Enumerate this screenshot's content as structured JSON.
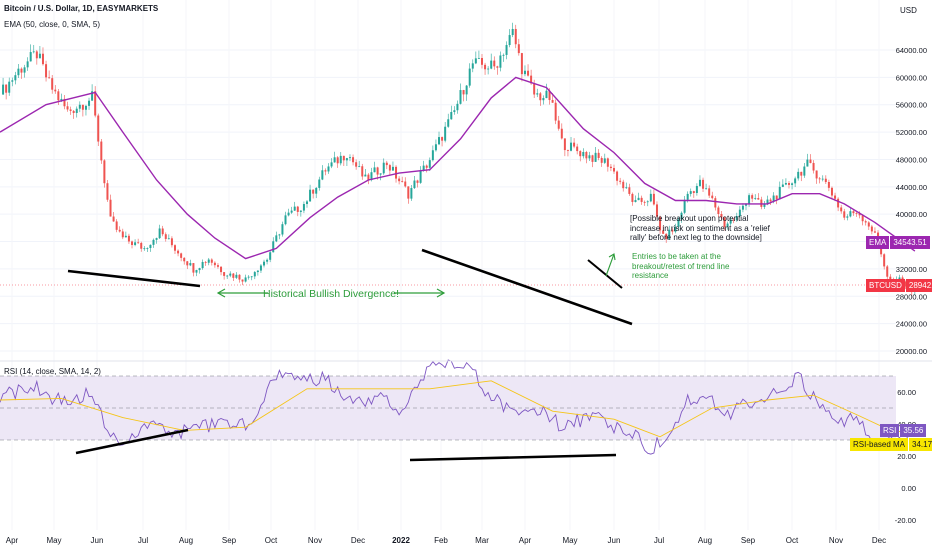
{
  "header": {
    "symbol_title": "Bitcoin / U.S. Dollar, 1D, EASYMARKETS",
    "ema_indicator": "EMA (50, close, 0, SMA, 5)",
    "rsi_indicator": "RSI (14, close, SMA, 14, 2)",
    "currency": "USD"
  },
  "annotations": {
    "divergence_label": "Historical Bullish Divergence!",
    "breakout_note": [
      "[Possible breakout upon potential",
      "increase in risk on sentiment as a 'relief",
      "rally' before next leg to the downside]"
    ],
    "entries_note": [
      "Entries to be taken at the",
      "breakout/retest of trend line",
      "resistance"
    ]
  },
  "price_tags": {
    "ema": {
      "label": "EMA",
      "value": "34543.51",
      "color": "#9c27b0"
    },
    "btc": {
      "label": "BTCUSD",
      "value": "28942.52",
      "color": "#f23645"
    },
    "rsi": {
      "label": "RSI",
      "value": "35.56",
      "color": "#7e57c2"
    },
    "rsi_ma": {
      "label": "RSI-based MA",
      "value": "34.17",
      "color": "#f7e600"
    }
  },
  "colors": {
    "up_candle": "#26a69a",
    "down_candle": "#ef5350",
    "ema_line": "#9c27b0",
    "rsi_line": "#7e57c2",
    "rsi_ma_line": "#f5c518",
    "rsi_band": "#ede7f6",
    "annotation_green": "#2e9d3b",
    "trendline": "#000000"
  },
  "chart_data": [
    {
      "type": "candlestick",
      "title": "Bitcoin / U.S. Dollar, 1D, EASYMARKETS",
      "y_axis_ticks": [
        20000,
        24000,
        28000,
        32000,
        36000,
        40000,
        44000,
        48000,
        52000,
        56000,
        60000,
        64000
      ],
      "y_axis_tick_labels": [
        "20000.00",
        "24000.00",
        "28000.00",
        "32000.00",
        "36000.00",
        "40000.00",
        "44000.00",
        "48000.00",
        "52000.00",
        "56000.00",
        "60000.00",
        "64000.00"
      ],
      "x_axis_labels": [
        "Apr",
        "May",
        "Jun",
        "Jul",
        "Aug",
        "Sep",
        "Oct",
        "Nov",
        "Dec",
        "2022",
        "Feb",
        "Mar",
        "Apr",
        "May",
        "Jun",
        "Jul",
        "Aug",
        "Sep",
        "Oct",
        "Nov",
        "Dec"
      ],
      "ylim": [
        18500,
        66500
      ],
      "price_path": [
        [
          0,
          57500
        ],
        [
          6,
          61000
        ],
        [
          12,
          63500
        ],
        [
          16,
          59000
        ],
        [
          22,
          55000
        ],
        [
          30,
          57000
        ],
        [
          36,
          39000
        ],
        [
          40,
          36500
        ],
        [
          47,
          35000
        ],
        [
          52,
          37500
        ],
        [
          58,
          34500
        ],
        [
          63,
          32000
        ],
        [
          68,
          33500
        ],
        [
          73,
          31500
        ],
        [
          80,
          30500
        ],
        [
          87,
          33500
        ],
        [
          93,
          39500
        ],
        [
          99,
          41500
        ],
        [
          106,
          46500
        ],
        [
          113,
          49000
        ],
        [
          119,
          45000
        ],
        [
          126,
          47500
        ],
        [
          133,
          43000
        ],
        [
          140,
          48000
        ],
        [
          148,
          55000
        ],
        [
          154,
          62000
        ],
        [
          161,
          61500
        ],
        [
          167,
          66500
        ],
        [
          170,
          61500
        ],
        [
          174,
          57500
        ],
        [
          179,
          57000
        ],
        [
          183,
          50500
        ],
        [
          187,
          49500
        ],
        [
          192,
          48500
        ],
        [
          198,
          47500
        ],
        [
          203,
          44000
        ],
        [
          207,
          41500
        ],
        [
          212,
          42500
        ],
        [
          216,
          36500
        ],
        [
          220,
          38000
        ],
        [
          224,
          43000
        ],
        [
          228,
          44500
        ],
        [
          232,
          42000
        ],
        [
          236,
          38500
        ],
        [
          240,
          39500
        ],
        [
          244,
          43000
        ],
        [
          248,
          41000
        ],
        [
          252,
          42500
        ],
        [
          256,
          44000
        ],
        [
          260,
          46000
        ],
        [
          263,
          47200
        ],
        [
          266,
          46000
        ],
        [
          270,
          44000
        ],
        [
          275,
          39500
        ],
        [
          279,
          40500
        ],
        [
          283,
          38500
        ],
        [
          286,
          36000
        ],
        [
          289,
          31000
        ],
        [
          291,
          29500
        ],
        [
          293,
          30500
        ],
        [
          296,
          29200
        ],
        [
          298,
          29000
        ]
      ],
      "ema_path": [
        [
          0,
          52000
        ],
        [
          15,
          56000
        ],
        [
          31,
          57800
        ],
        [
          40,
          52000
        ],
        [
          51,
          45000
        ],
        [
          61,
          40000
        ],
        [
          70,
          36500
        ],
        [
          80,
          33500
        ],
        [
          90,
          35000
        ],
        [
          101,
          39500
        ],
        [
          110,
          42500
        ],
        [
          120,
          45000
        ],
        [
          130,
          46000
        ],
        [
          140,
          46500
        ],
        [
          150,
          51000
        ],
        [
          160,
          57000
        ],
        [
          168,
          60000
        ],
        [
          178,
          58500
        ],
        [
          190,
          52500
        ],
        [
          200,
          49000
        ],
        [
          210,
          44500
        ],
        [
          220,
          42000
        ],
        [
          230,
          42000
        ],
        [
          240,
          41500
        ],
        [
          250,
          41500
        ],
        [
          258,
          43000
        ],
        [
          267,
          43000
        ],
        [
          275,
          41500
        ],
        [
          285,
          38800
        ],
        [
          298,
          34600
        ]
      ],
      "last_close": 28942.52,
      "last_ema": 34543.51
    },
    {
      "type": "line",
      "title": "RSI (14, close, SMA, 14, 2)",
      "y_axis_ticks": [
        -20,
        0,
        20,
        40,
        60
      ],
      "y_axis_tick_labels": [
        "-20.00",
        "0.00",
        "20.00",
        "40.00",
        "60.00"
      ],
      "ylim": [
        -22,
        98
      ],
      "band": [
        30,
        70
      ],
      "rsi_path": [
        [
          0,
          58
        ],
        [
          6,
          60
        ],
        [
          12,
          63
        ],
        [
          18,
          55
        ],
        [
          24,
          55
        ],
        [
          30,
          60
        ],
        [
          36,
          33
        ],
        [
          40,
          26
        ],
        [
          46,
          36
        ],
        [
          52,
          40
        ],
        [
          58,
          34
        ],
        [
          64,
          38
        ],
        [
          70,
          40
        ],
        [
          76,
          42
        ],
        [
          82,
          36
        ],
        [
          88,
          65
        ],
        [
          93,
          72
        ],
        [
          99,
          67
        ],
        [
          106,
          69
        ],
        [
          112,
          58
        ],
        [
          118,
          55
        ],
        [
          124,
          57
        ],
        [
          130,
          48
        ],
        [
          136,
          66
        ],
        [
          142,
          79
        ],
        [
          148,
          74
        ],
        [
          154,
          74
        ],
        [
          158,
          62
        ],
        [
          164,
          52
        ],
        [
          170,
          45
        ],
        [
          176,
          48
        ],
        [
          182,
          40
        ],
        [
          188,
          42
        ],
        [
          194,
          44
        ],
        [
          200,
          38
        ],
        [
          206,
          35
        ],
        [
          212,
          24
        ],
        [
          218,
          34
        ],
        [
          224,
          55
        ],
        [
          230,
          58
        ],
        [
          236,
          44
        ],
        [
          242,
          52
        ],
        [
          248,
          55
        ],
        [
          254,
          62
        ],
        [
          260,
          70
        ],
        [
          266,
          54
        ],
        [
          272,
          42
        ],
        [
          278,
          43
        ],
        [
          282,
          37
        ],
        [
          286,
          24
        ],
        [
          290,
          28
        ],
        [
          294,
          33
        ],
        [
          298,
          35.56
        ]
      ],
      "rsi_ma_path": [
        [
          0,
          55
        ],
        [
          20,
          56
        ],
        [
          40,
          44
        ],
        [
          60,
          36
        ],
        [
          80,
          38
        ],
        [
          100,
          62
        ],
        [
          120,
          62
        ],
        [
          140,
          62
        ],
        [
          160,
          67
        ],
        [
          180,
          48
        ],
        [
          200,
          43
        ],
        [
          215,
          32
        ],
        [
          232,
          50
        ],
        [
          250,
          55
        ],
        [
          265,
          58
        ],
        [
          280,
          45
        ],
        [
          290,
          36
        ],
        [
          298,
          34.17
        ]
      ],
      "last_rsi": 35.56,
      "last_rsi_ma": 34.17
    }
  ]
}
